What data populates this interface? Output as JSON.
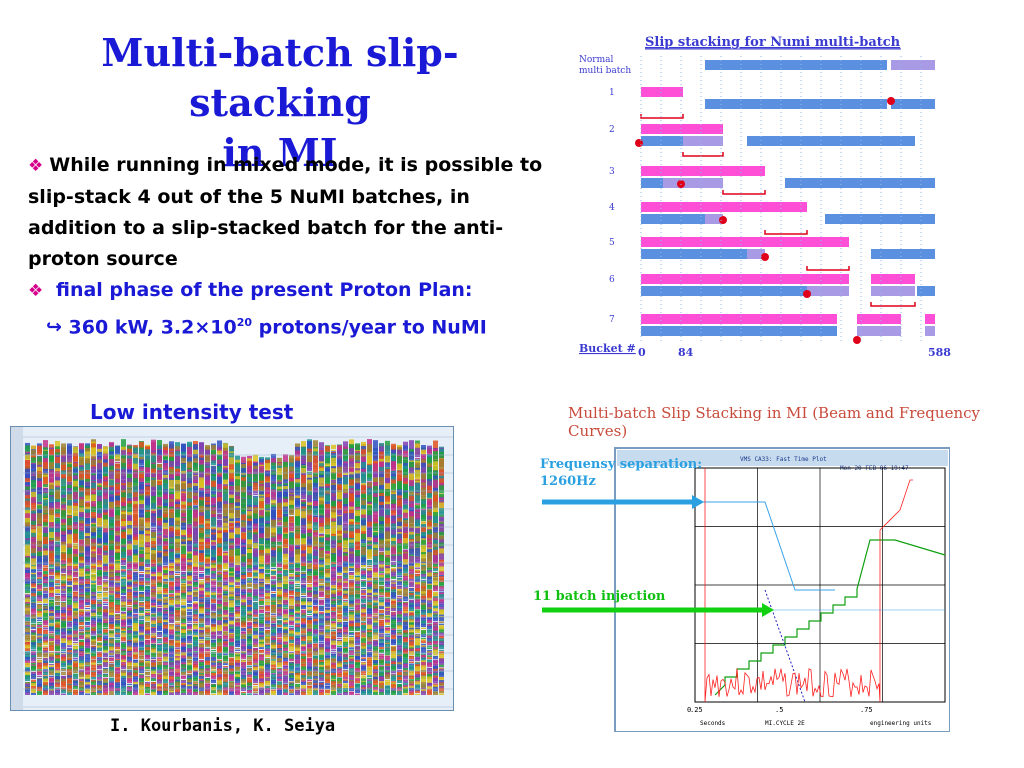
{
  "slide": {
    "title_line1": "Multi-batch slip-stacking",
    "title_line2": "in MI",
    "bullet1": "While running in mixed mode, it is possible to slip-stack 4 out of the 5 NuMI batches, in addition to a slip-stacked batch for the anti-proton source",
    "bullet2_lead": "final phase of the present Proton Plan:",
    "bullet2_value_pre": "360 kW, 3.2×10",
    "bullet2_exp": "20",
    "bullet2_value_post": " protons/year to NuMI",
    "low_intensity_caption": "Low intensity test",
    "authors": "I. Kourbanis, K. Seiya"
  },
  "slip_diagram": {
    "title": "Slip stacking for Numi multi-batch",
    "row_label_top_line1": "Normal",
    "row_label_top_line2": "multi batch",
    "row_numbers": [
      "1",
      "2",
      "3",
      "4",
      "5",
      "6",
      "7"
    ],
    "bucket_label": "Bucket #",
    "bucket_ticks": [
      "0",
      "84",
      "588"
    ],
    "colors": {
      "pink": "#ff4fd6",
      "blue": "#5b8fe0",
      "lavender": "#a99ae6",
      "marker": "#e0001a",
      "text": "#3a3ad0"
    }
  },
  "scope_figure": {
    "title": "Multi-batch Slip Stacking in MI (Beam and Frequency Curves)",
    "annotation_freq_line1": "Frequensy separation:",
    "annotation_freq_line2": "1260Hz",
    "annotation_injection": "11 batch injection",
    "header_text": "VMS  CA33: Fast Time Plot",
    "header_date": "Mon  20-FEB-06   19:47",
    "x_ticks": [
      ".25",
      ".5",
      ".75"
    ],
    "x_zero": "0",
    "footer_left": "Seconds",
    "footer_mid": "MI.CYCLE  2E",
    "footer_right": "engineering units",
    "colors": {
      "freq": "#3aa3e8",
      "inject": "#18d818",
      "trace_red": "#ff2020",
      "trace_green": "#10a010",
      "trace_blue": "#2020c0"
    }
  },
  "waterfall": {
    "description_hidden": ""
  }
}
